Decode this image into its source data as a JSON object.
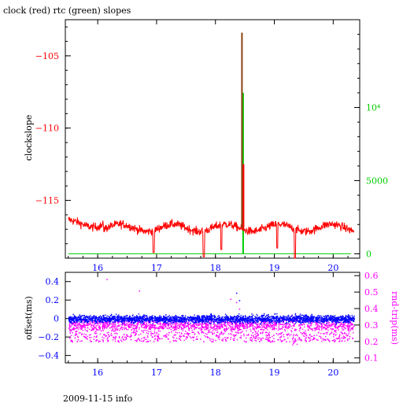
{
  "chart_data": [
    {
      "type": "line",
      "title": "clock (red) rtc (green) slopes",
      "ylabel_left": "clockslope",
      "ylabel_right": "",
      "xlim": [
        15.45,
        20.45
      ],
      "ylim_left": [
        -119.0,
        -102.5
      ],
      "ylim_right": [
        -300,
        16000
      ],
      "x_ticks": [
        16,
        17,
        18,
        19,
        20
      ],
      "y_ticks_left": [
        -105,
        -110,
        -115
      ],
      "y_ticks_right": [
        0,
        5000,
        10000
      ],
      "y_tick_labels_right": [
        "0",
        "5000",
        "10⁴"
      ],
      "series": [
        {
          "color": "#ff0000",
          "axis": "left",
          "baseline": -116.9,
          "noise": 0.5,
          "dips": [
            {
              "x": 16.95,
              "y": -118.6
            },
            {
              "x": 17.8,
              "y": -118.9
            },
            {
              "x": 18.1,
              "y": -118.4
            },
            {
              "x": 19.05,
              "y": -118.3
            },
            {
              "x": 19.35,
              "y": -119.0
            }
          ],
          "spike": {
            "x": 18.45,
            "y": -103.4
          }
        },
        {
          "color": "#00cc00",
          "axis": "right",
          "baseline": 0,
          "spike": {
            "x": 18.47,
            "y": 11000
          }
        }
      ],
      "x_range": [
        15.5,
        20.35
      ]
    },
    {
      "type": "scatter",
      "ylabel_left": "offset(ms)",
      "ylabel_right": "rnd-trip(ms)",
      "xlim": [
        15.45,
        20.45
      ],
      "ylim_left": [
        -0.48,
        0.5
      ],
      "ylim_right": [
        0.07,
        0.62
      ],
      "x_ticks": [
        16,
        17,
        18,
        19,
        20
      ],
      "y_ticks_left": [
        0.4,
        0.2,
        0,
        -0.2,
        -0.4
      ],
      "y_tick_labels_left": [
        "0.4",
        "0.2",
        "0",
        "−0.2",
        "−0.4"
      ],
      "y_ticks_right": [
        0.6,
        0.5,
        0.4,
        0.3,
        0.2,
        0.1
      ],
      "series": [
        {
          "name": "",
          "color": "#0000ff",
          "axis": "left",
          "center": 0.0,
          "spread": 0.07
        },
        {
          "name": "",
          "color": "#ff00ff",
          "axis": "right",
          "center": 0.3,
          "spread": 0.06
        }
      ],
      "x_range": [
        15.5,
        20.35
      ]
    }
  ],
  "footer": {
    "text": "2009-11-15 info"
  },
  "colors": {
    "left_axis_top": "#ff0000",
    "right_axis_top": "#00cc00",
    "left_axis_bottom": "#0000ff",
    "right_axis_bottom": "#ff00ff",
    "x_ticks": "#0000ff"
  }
}
